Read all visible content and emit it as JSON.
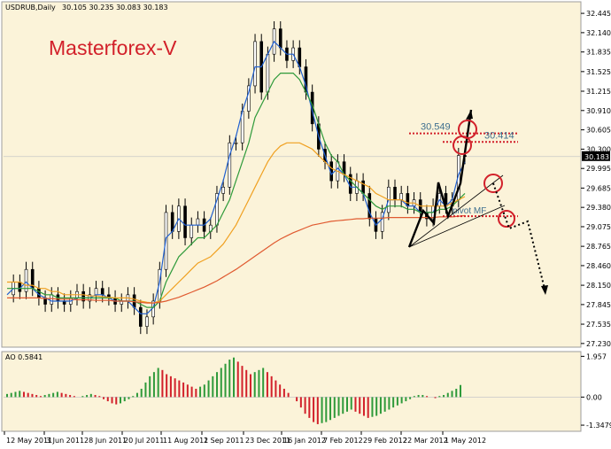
{
  "header": {
    "instrument": "USDRUB,Daily",
    "ohlc": "30.105 30.235 30.083 30.183"
  },
  "brand": {
    "text": "Masterforex-V"
  },
  "chart_data": [
    {
      "type": "candlestick",
      "title": "",
      "symbol": "USDRUB",
      "timeframe": "Daily",
      "ylim": [
        27.2,
        32.6
      ],
      "y_ticks": [
        "32.445",
        "32.140",
        "31.835",
        "31.525",
        "31.215",
        "30.910",
        "30.605",
        "30.300",
        "29.995",
        "29.685",
        "29.380",
        "29.075",
        "28.765",
        "28.460",
        "28.150",
        "27.845",
        "27.535",
        "27.230"
      ],
      "x_ticks": [
        "12 May 2011",
        "3 Jun 2011",
        "28 Jun 2011",
        "20 Jul 2011",
        "11 Aug 2011",
        "2 Sep 2011",
        "23 Dec 2011",
        "16 Jan 2012",
        "7 Feb 2012",
        "29 Feb 2012",
        "22 Mar 2012",
        "1 May 2012"
      ],
      "current_price": "30.183",
      "close_series": [
        {
          "d": 0,
          "c": 28.0
        },
        {
          "d": 2,
          "c": 28.2
        },
        {
          "d": 4,
          "c": 28.05
        },
        {
          "d": 6,
          "c": 28.4
        },
        {
          "d": 8,
          "c": 28.1
        },
        {
          "d": 10,
          "c": 27.95
        },
        {
          "d": 12,
          "c": 27.85
        },
        {
          "d": 14,
          "c": 28.0
        },
        {
          "d": 16,
          "c": 27.9
        },
        {
          "d": 18,
          "c": 27.85
        },
        {
          "d": 20,
          "c": 27.95
        },
        {
          "d": 22,
          "c": 28.05
        },
        {
          "d": 24,
          "c": 27.9
        },
        {
          "d": 26,
          "c": 28.0
        },
        {
          "d": 28,
          "c": 28.1
        },
        {
          "d": 30,
          "c": 28.0
        },
        {
          "d": 32,
          "c": 27.95
        },
        {
          "d": 34,
          "c": 27.85
        },
        {
          "d": 36,
          "c": 27.9
        },
        {
          "d": 38,
          "c": 28.0
        },
        {
          "d": 40,
          "c": 27.8
        },
        {
          "d": 42,
          "c": 27.5
        },
        {
          "d": 44,
          "c": 27.65
        },
        {
          "d": 46,
          "c": 27.9
        },
        {
          "d": 48,
          "c": 28.4
        },
        {
          "d": 50,
          "c": 29.3
        },
        {
          "d": 52,
          "c": 29.0
        },
        {
          "d": 54,
          "c": 29.4
        },
        {
          "d": 56,
          "c": 28.9
        },
        {
          "d": 58,
          "c": 29.1
        },
        {
          "d": 60,
          "c": 29.2
        },
        {
          "d": 62,
          "c": 29.0
        },
        {
          "d": 64,
          "c": 29.1
        },
        {
          "d": 66,
          "c": 29.6
        },
        {
          "d": 68,
          "c": 29.7
        },
        {
          "d": 70,
          "c": 30.4
        },
        {
          "d": 72,
          "c": 30.4
        },
        {
          "d": 74,
          "c": 30.9
        },
        {
          "d": 76,
          "c": 31.3
        },
        {
          "d": 78,
          "c": 32.0
        },
        {
          "d": 80,
          "c": 31.2
        },
        {
          "d": 82,
          "c": 31.8
        },
        {
          "d": 84,
          "c": 32.2
        },
        {
          "d": 86,
          "c": 31.9
        },
        {
          "d": 88,
          "c": 31.7
        },
        {
          "d": 90,
          "c": 31.9
        },
        {
          "d": 92,
          "c": 31.6
        },
        {
          "d": 94,
          "c": 31.2
        },
        {
          "d": 96,
          "c": 30.7
        },
        {
          "d": 98,
          "c": 30.3
        },
        {
          "d": 100,
          "c": 30.1
        },
        {
          "d": 102,
          "c": 29.8
        },
        {
          "d": 104,
          "c": 30.1
        },
        {
          "d": 106,
          "c": 29.9
        },
        {
          "d": 108,
          "c": 29.6
        },
        {
          "d": 110,
          "c": 29.8
        },
        {
          "d": 112,
          "c": 29.6
        },
        {
          "d": 114,
          "c": 29.2
        },
        {
          "d": 116,
          "c": 29.0
        },
        {
          "d": 118,
          "c": 29.3
        },
        {
          "d": 120,
          "c": 29.7
        },
        {
          "d": 122,
          "c": 29.5
        },
        {
          "d": 124,
          "c": 29.6
        },
        {
          "d": 126,
          "c": 29.4
        },
        {
          "d": 128,
          "c": 29.5
        },
        {
          "d": 130,
          "c": 29.3
        },
        {
          "d": 132,
          "c": 29.2
        },
        {
          "d": 134,
          "c": 29.4
        },
        {
          "d": 136,
          "c": 29.6
        },
        {
          "d": 138,
          "c": 29.4
        },
        {
          "d": 140,
          "c": 29.5
        },
        {
          "d": 142,
          "c": 30.2
        },
        {
          "d": 144,
          "c": 30.183
        }
      ],
      "moving_averages": [
        {
          "name": "",
          "color": "#1f5fd0",
          "values": [
            28.0,
            28.1,
            28.1,
            28.2,
            28.1,
            28.0,
            27.95,
            27.9,
            27.9,
            27.9,
            27.9,
            27.95,
            27.95,
            27.95,
            28.0,
            28.0,
            27.95,
            27.9,
            27.9,
            27.9,
            27.8,
            27.7,
            27.7,
            27.8,
            28.2,
            28.9,
            29.0,
            29.2,
            29.1,
            29.1,
            29.1,
            29.1,
            29.2,
            29.5,
            29.8,
            30.2,
            30.5,
            30.9,
            31.2,
            31.6,
            31.6,
            31.8,
            32.0,
            31.9,
            31.8,
            31.8,
            31.6,
            31.3,
            30.9,
            30.5,
            30.2,
            29.9,
            30.0,
            29.9,
            29.7,
            29.7,
            29.6,
            29.3,
            29.1,
            29.2,
            29.5,
            29.5,
            29.5,
            29.4,
            29.4,
            29.3,
            29.3,
            29.3,
            29.5,
            29.4,
            29.5,
            29.9,
            30.1
          ]
        },
        {
          "name": "",
          "color": "#2e9a3a",
          "values": [
            28.1,
            28.1,
            28.1,
            28.1,
            28.1,
            28.05,
            28.0,
            28.0,
            27.95,
            27.95,
            27.95,
            27.95,
            27.95,
            27.95,
            27.95,
            27.95,
            27.95,
            27.95,
            27.9,
            27.9,
            27.9,
            27.85,
            27.8,
            27.8,
            27.9,
            28.2,
            28.4,
            28.6,
            28.7,
            28.8,
            28.9,
            28.9,
            29.0,
            29.1,
            29.3,
            29.5,
            29.8,
            30.1,
            30.4,
            30.8,
            31.0,
            31.2,
            31.4,
            31.5,
            31.5,
            31.5,
            31.4,
            31.2,
            31.0,
            30.7,
            30.4,
            30.2,
            30.1,
            29.9,
            29.8,
            29.7,
            29.6,
            29.5,
            29.4,
            29.35,
            29.4,
            29.4,
            29.4,
            29.35,
            29.35,
            29.3,
            29.3,
            29.3,
            29.35,
            29.35,
            29.4,
            29.5,
            29.6
          ]
        },
        {
          "name": "",
          "color": "#f0a020",
          "values": [
            28.2,
            28.2,
            28.2,
            28.15,
            28.15,
            28.1,
            28.1,
            28.05,
            28.05,
            28.0,
            28.0,
            28.0,
            28.0,
            27.98,
            27.98,
            27.97,
            27.96,
            27.95,
            27.95,
            27.95,
            27.93,
            27.9,
            27.88,
            27.87,
            27.9,
            28.0,
            28.1,
            28.2,
            28.3,
            28.4,
            28.5,
            28.55,
            28.6,
            28.7,
            28.8,
            28.95,
            29.1,
            29.3,
            29.5,
            29.7,
            29.9,
            30.1,
            30.25,
            30.35,
            30.4,
            30.4,
            30.4,
            30.35,
            30.3,
            30.2,
            30.1,
            30.0,
            29.95,
            29.9,
            29.85,
            29.8,
            29.75,
            29.7,
            29.6,
            29.55,
            29.5,
            29.5,
            29.5,
            29.45,
            29.45,
            29.4,
            29.4,
            29.4,
            29.4,
            29.4,
            29.45,
            29.5,
            29.55
          ]
        },
        {
          "name": "",
          "color": "#e05a30",
          "values": [
            27.95,
            27.95,
            27.95,
            27.95,
            27.95,
            27.95,
            27.94,
            27.94,
            27.93,
            27.93,
            27.93,
            27.92,
            27.92,
            27.92,
            27.91,
            27.91,
            27.91,
            27.9,
            27.9,
            27.9,
            27.89,
            27.88,
            27.87,
            27.87,
            27.88,
            27.9,
            27.93,
            27.96,
            28.0,
            28.04,
            28.08,
            28.12,
            28.17,
            28.22,
            28.28,
            28.34,
            28.4,
            28.47,
            28.54,
            28.61,
            28.68,
            28.75,
            28.82,
            28.88,
            28.93,
            28.98,
            29.02,
            29.06,
            29.1,
            29.12,
            29.14,
            29.16,
            29.17,
            29.18,
            29.19,
            29.2,
            29.2,
            29.21,
            29.21,
            29.21,
            29.22,
            29.22,
            29.22,
            29.22,
            29.22,
            29.22,
            29.22,
            29.22,
            29.23,
            29.23,
            29.23,
            29.24,
            29.25
          ]
        }
      ],
      "annotations": {
        "levels": [
          {
            "label": "30.549",
            "price": 30.549,
            "color": "#d2202a"
          },
          {
            "label": "30.414",
            "price": 30.414,
            "color": "#d2202a"
          }
        ],
        "pivot": {
          "label": "pivot MF",
          "price": 29.24,
          "color": "#d2202a"
        }
      }
    },
    {
      "type": "bar",
      "title": "",
      "indicator_label": "AO 0.5841",
      "ylim": [
        -1.6,
        2.1
      ],
      "y_ticks": [
        "1.957",
        "0.00",
        "-1.3479"
      ],
      "values": [
        0.15,
        0.2,
        0.25,
        0.3,
        0.25,
        0.2,
        0.15,
        0.1,
        0.05,
        0.1,
        0.15,
        0.2,
        0.25,
        0.2,
        0.15,
        0.1,
        0.05,
        0.0,
        0.05,
        0.1,
        0.15,
        0.1,
        0.05,
        -0.1,
        -0.2,
        -0.3,
        -0.35,
        -0.3,
        -0.2,
        -0.1,
        0.05,
        0.2,
        0.4,
        0.7,
        1.0,
        1.2,
        1.4,
        1.3,
        1.1,
        1.0,
        0.9,
        0.8,
        0.7,
        0.6,
        0.5,
        0.4,
        0.5,
        0.6,
        0.8,
        1.0,
        1.2,
        1.4,
        1.6,
        1.8,
        1.9,
        1.7,
        1.5,
        1.3,
        1.1,
        1.2,
        1.3,
        1.4,
        1.2,
        1.0,
        0.8,
        0.6,
        0.4,
        0.2,
        0.0,
        -0.2,
        -0.5,
        -0.8,
        -1.0,
        -1.2,
        -1.3,
        -1.25,
        -1.2,
        -1.1,
        -1.0,
        -0.9,
        -0.8,
        -0.7,
        -0.6,
        -0.7,
        -0.8,
        -0.9,
        -1.0,
        -0.95,
        -0.9,
        -0.8,
        -0.7,
        -0.6,
        -0.5,
        -0.4,
        -0.3,
        -0.2,
        -0.1,
        0.05,
        0.1,
        0.1,
        0.05,
        0.0,
        -0.05,
        0.05,
        0.1,
        0.2,
        0.3,
        0.4,
        0.58
      ],
      "up_color": "#2e9a3a",
      "down_color": "#d2202a"
    }
  ]
}
